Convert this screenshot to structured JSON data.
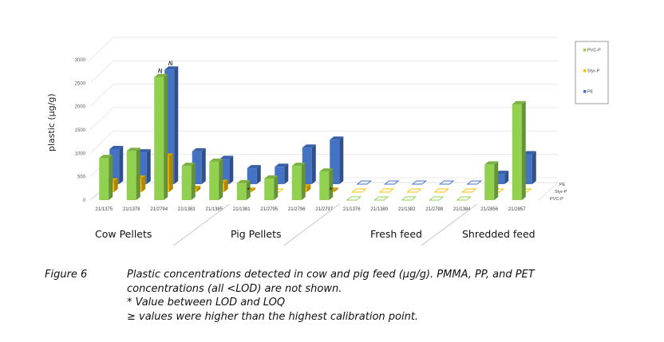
{
  "chart_data": {
    "type": "bar",
    "subtype": "3d-clustered-column",
    "title": "",
    "ylabel": "plastic (µg/g)",
    "xlabel": "",
    "ylim": [
      0,
      3000
    ],
    "yticks": [
      "0",
      "500",
      "1000",
      "1500",
      "2000",
      "2500",
      "3000"
    ],
    "grid": true,
    "legend_position": "right",
    "categories": [
      "21/1375",
      "21/1378",
      "21/2794",
      "21/1383",
      "21/1385",
      "21/1381",
      "21/2795",
      "21/2796",
      "21/2797",
      "21/1376",
      "21/1380",
      "21/1382",
      "21/2798",
      "21/1384",
      "21/2856",
      "21/2857"
    ],
    "groups": [
      {
        "label": "Cow Pellets",
        "count": 5
      },
      {
        "label": "Pig Pellets",
        "count": 4
      },
      {
        "label": "Fresh feed",
        "count": 5
      },
      {
        "label": "Shredded feed",
        "count": 2
      }
    ],
    "series": [
      {
        "name": "PVC-P",
        "color": "#92d050",
        "values": [
          900,
          1050,
          2630,
          730,
          820,
          360,
          460,
          730,
          610,
          0,
          0,
          0,
          0,
          0,
          760,
          2050
        ]
      },
      {
        "name": "Styr-P",
        "color": "#ffc000",
        "values": [
          230,
          290,
          760,
          70,
          200,
          30,
          0,
          100,
          30,
          0,
          0,
          0,
          0,
          0,
          0,
          0
        ]
      },
      {
        "name": "PE",
        "color": "#4472c4",
        "values": [
          750,
          680,
          2450,
          700,
          540,
          340,
          370,
          780,
          950,
          0,
          0,
          0,
          0,
          0,
          220,
          640
        ]
      }
    ],
    "annotations": [
      {
        "category": "21/2794",
        "series": "PVC-P",
        "text": "≥"
      },
      {
        "category": "21/2794",
        "series": "PE",
        "text": "≥"
      },
      {
        "category": "21/1381",
        "series": "Styr-P",
        "text": "*"
      },
      {
        "category": "21/2797",
        "series": "Styr-P",
        "text": "*"
      }
    ],
    "depth_axis_labels": [
      "PE",
      "Styr-P",
      "PVC-P"
    ]
  },
  "caption": {
    "figure_label": "Figure 6",
    "lines": [
      "Plastic concentrations detected in cow and pig feed (µg/g). PMMA, PP, and PET",
      "concentrations (all <LOD) are not shown.",
      "* Value between LOD and LOQ",
      "≥ values were higher than the highest calibration point."
    ]
  }
}
